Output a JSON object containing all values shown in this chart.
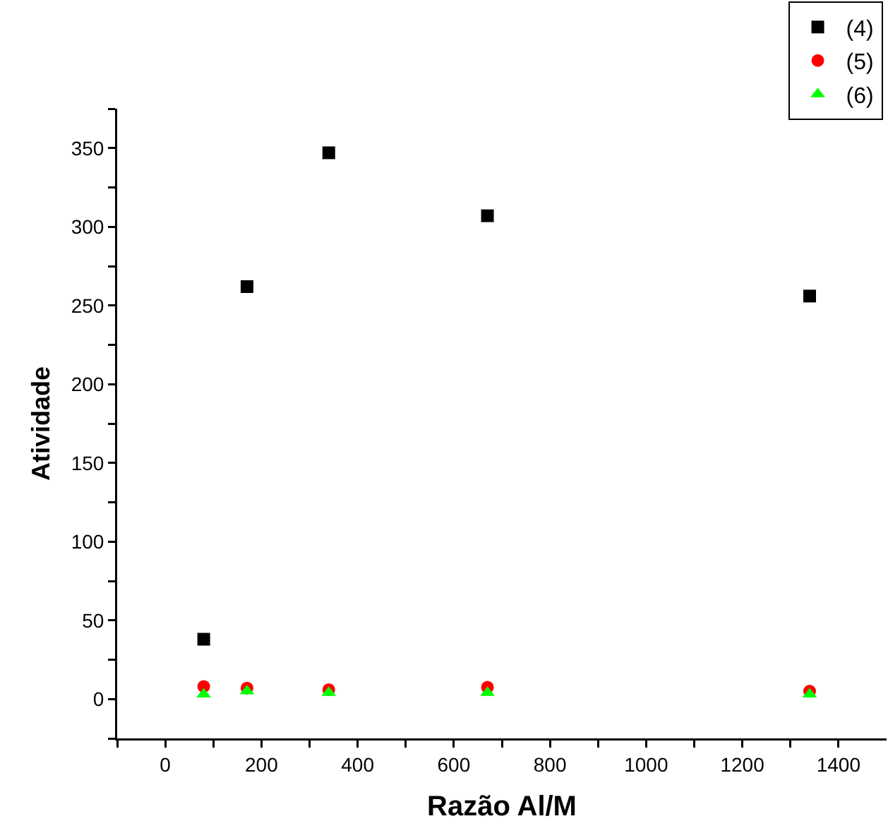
{
  "chart_data": {
    "type": "scatter",
    "xlabel": "Razão Al/M",
    "ylabel": "Atividade",
    "x": [
      80,
      170,
      340,
      670,
      1340
    ],
    "series": [
      {
        "name": "(4)",
        "color": "#000000",
        "marker": "square",
        "values": [
          38,
          262,
          347,
          307,
          256
        ]
      },
      {
        "name": "(5)",
        "color": "#ff0000",
        "marker": "circle",
        "values": [
          8,
          7,
          6,
          7.5,
          5
        ]
      },
      {
        "name": "(6)",
        "color": "#00ff00",
        "marker": "triangle",
        "values": [
          3,
          5,
          4,
          4,
          3
        ]
      }
    ],
    "xlim": [
      -100,
      1500
    ],
    "xticks": [
      {
        "value": -100,
        "label": null
      },
      0,
      {
        "value": 100,
        "label": null
      },
      200,
      {
        "value": 300,
        "label": null
      },
      400,
      {
        "value": 500,
        "label": null
      },
      600,
      {
        "value": 700,
        "label": null
      },
      800,
      {
        "value": 900,
        "label": null
      },
      1000,
      {
        "value": 1100,
        "label": null
      },
      1200,
      {
        "value": 1300,
        "label": null
      },
      1400
    ],
    "ylim": [
      -25,
      375
    ],
    "yticks": [
      {
        "value": -25,
        "label": null
      },
      0,
      {
        "value": 25,
        "label": null
      },
      50,
      {
        "value": 75,
        "label": null
      },
      100,
      {
        "value": 125,
        "label": null
      },
      150,
      {
        "value": 175,
        "label": null
      },
      200,
      {
        "value": 225,
        "label": null
      },
      250,
      {
        "value": 275,
        "label": null
      },
      300,
      {
        "value": 325,
        "label": null
      },
      350,
      {
        "value": 375,
        "label": null
      }
    ],
    "grid": false,
    "legend": "top right"
  }
}
